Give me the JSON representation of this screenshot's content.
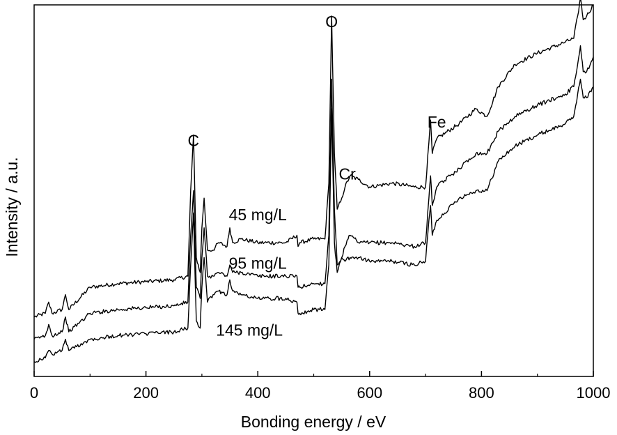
{
  "chart_data": {
    "type": "line",
    "xlabel": "Bonding energy / eV",
    "ylabel": "Intensity / a.u.",
    "xlim": [
      0,
      1000
    ],
    "ylim": [
      0,
      100
    ],
    "y_ticks_shown": false,
    "grid": false,
    "legend": "none",
    "x_ticks": [
      0,
      200,
      400,
      600,
      800,
      1000
    ],
    "peak_labels": [
      {
        "text": "C",
        "x": 285,
        "y": 62
      },
      {
        "text": "O",
        "x": 532,
        "y": 94
      },
      {
        "text": "Cr",
        "x": 560,
        "y": 53
      },
      {
        "text": "Fe",
        "x": 720,
        "y": 67
      }
    ],
    "series_labels": [
      {
        "text": "45 mg/L",
        "x": 400,
        "y": 42
      },
      {
        "text": "95 mg/L",
        "x": 400,
        "y": 29
      },
      {
        "text": "145 mg/L",
        "x": 385,
        "y": 11
      }
    ],
    "series": [
      {
        "name": "45 mg/L",
        "x": [
          0,
          20,
          26,
          32,
          50,
          56,
          62,
          100,
          150,
          200,
          250,
          275,
          280,
          285,
          290,
          297,
          300,
          304,
          310,
          320,
          330,
          345,
          350,
          355,
          370,
          400,
          450,
          470,
          472,
          475,
          500,
          520,
          527,
          532,
          537,
          542,
          550,
          556,
          565,
          580,
          600,
          640,
          680,
          700,
          706,
          709,
          712,
          720,
          760,
          790,
          810,
          830,
          860,
          900,
          950,
          965,
          972,
          977,
          982,
          988,
          1000
        ],
        "y": [
          16,
          17,
          20,
          17,
          18,
          22,
          18,
          24,
          25,
          25.5,
          26,
          27,
          50,
          65,
          32,
          28,
          40,
          48,
          34,
          34,
          36,
          35,
          40,
          36,
          37,
          36,
          36,
          38,
          35,
          36,
          37,
          37,
          52,
          97,
          60,
          45,
          48,
          51,
          54,
          53,
          51,
          52,
          51,
          51,
          63,
          69,
          60,
          64,
          68,
          72,
          70,
          78,
          84,
          87,
          90,
          91,
          97,
          102,
          96,
          97,
          100
        ]
      },
      {
        "name": "95 mg/L",
        "x": [
          0,
          20,
          26,
          32,
          50,
          56,
          62,
          100,
          150,
          200,
          250,
          275,
          280,
          285,
          290,
          297,
          300,
          304,
          310,
          320,
          330,
          345,
          350,
          355,
          370,
          400,
          450,
          470,
          472,
          475,
          500,
          520,
          527,
          532,
          537,
          542,
          550,
          556,
          565,
          580,
          600,
          640,
          680,
          700,
          706,
          709,
          712,
          720,
          760,
          790,
          810,
          830,
          860,
          900,
          950,
          965,
          972,
          977,
          982,
          988,
          1000
        ],
        "y": [
          10,
          11,
          14,
          11,
          12,
          16,
          12,
          17,
          18,
          18.5,
          19,
          20,
          38,
          50,
          24,
          21,
          32,
          40,
          27,
          27,
          28,
          27,
          30,
          28,
          28,
          27,
          27,
          27,
          24,
          24,
          25,
          25,
          38,
          80,
          45,
          30,
          32,
          35,
          38,
          36,
          36,
          36,
          35,
          36,
          48,
          54,
          46,
          51,
          56,
          60,
          60,
          66,
          70,
          73,
          76,
          78,
          84,
          89,
          82,
          82,
          86
        ]
      },
      {
        "name": "145 mg/L",
        "x": [
          0,
          20,
          26,
          32,
          50,
          56,
          62,
          100,
          150,
          200,
          250,
          275,
          280,
          285,
          290,
          297,
          300,
          304,
          310,
          320,
          330,
          345,
          350,
          355,
          370,
          400,
          450,
          470,
          472,
          475,
          500,
          520,
          527,
          532,
          537,
          542,
          550,
          556,
          565,
          580,
          600,
          640,
          680,
          700,
          706,
          709,
          712,
          720,
          760,
          790,
          810,
          830,
          860,
          900,
          950,
          965,
          972,
          977,
          982,
          988,
          1000
        ],
        "y": [
          4,
          5,
          7,
          6,
          7,
          10,
          7,
          10,
          11,
          11.5,
          12,
          13,
          30,
          44,
          15,
          13,
          24,
          32,
          20,
          22,
          23,
          22,
          26,
          23,
          22,
          21,
          21,
          20,
          17,
          17,
          18,
          18,
          30,
          72,
          36,
          28,
          32,
          31,
          32,
          32,
          31,
          31,
          30,
          31,
          42,
          46,
          38,
          42,
          48,
          50,
          50,
          58,
          62,
          65,
          68,
          70,
          76,
          80,
          75,
          75,
          78
        ]
      }
    ]
  }
}
